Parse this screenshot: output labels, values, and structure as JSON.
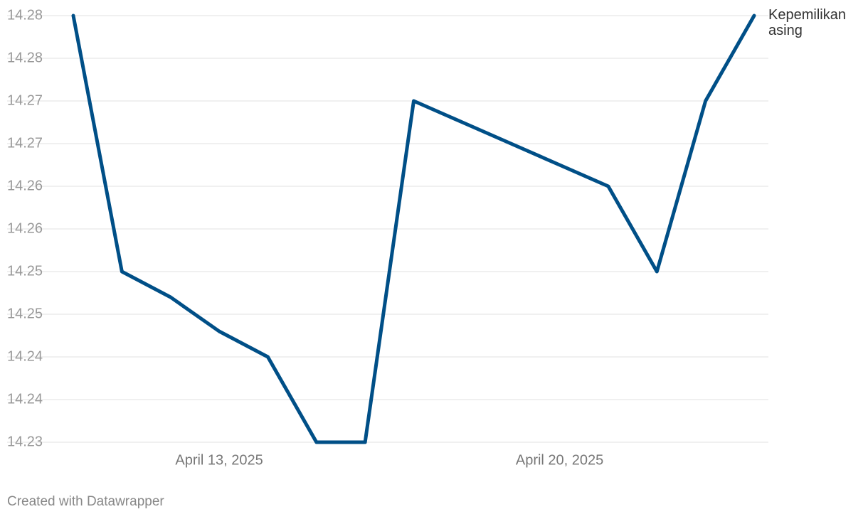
{
  "chart_data": {
    "type": "line",
    "x": [
      "2025-04-10",
      "2025-04-11",
      "2025-04-12",
      "2025-04-13",
      "2025-04-14",
      "2025-04-15",
      "2025-04-16",
      "2025-04-17",
      "2025-04-18",
      "2025-04-19",
      "2025-04-20",
      "2025-04-21",
      "2025-04-22",
      "2025-04-23",
      "2025-04-24"
    ],
    "series": [
      {
        "name": "Kepemilikan asing",
        "color": "#004f87",
        "values": [
          14.28,
          14.25,
          14.247,
          14.243,
          14.24,
          14.23,
          14.23,
          14.27,
          14.2675,
          14.265,
          14.2625,
          14.26,
          14.25,
          14.27,
          14.28
        ]
      }
    ],
    "xlim": [
      "2025-04-10",
      "2025-04-24"
    ],
    "xticks": [
      {
        "value": "2025-04-13",
        "label": "April 13, 2025"
      },
      {
        "value": "2025-04-20",
        "label": "April 20, 2025"
      }
    ],
    "ylim": [
      14.23,
      14.28
    ],
    "yticks": [
      14.28,
      {
        "value": 14.275,
        "label": "14.28"
      },
      14.27,
      {
        "value": 14.265,
        "label": "14.27"
      },
      14.26,
      {
        "value": 14.255,
        "label": "14.26"
      },
      14.25,
      {
        "value": 14.245,
        "label": "14.25"
      },
      14.24,
      {
        "value": 14.235,
        "label": "14.24"
      },
      14.23
    ],
    "grid": true,
    "footer": "Created with Datawrapper"
  }
}
